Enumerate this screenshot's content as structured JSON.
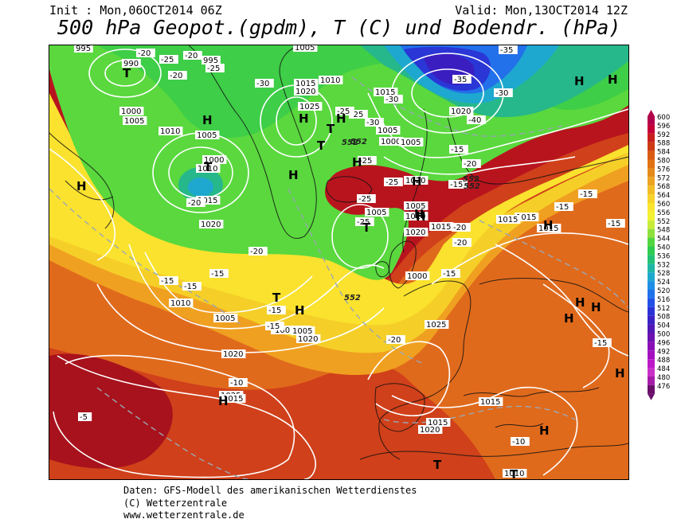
{
  "header": {
    "init": "Init : Mon,06OCT2014 06Z",
    "valid": "Valid: Mon,13OCT2014 12Z",
    "title": "500 hPa Geopot.(gpdm), T (C) und Bodendr. (hPa)"
  },
  "credits": {
    "line1": "Daten: GFS-Modell des amerikanischen Wetterdienstes",
    "line2": "(C) Wetterzentrale",
    "line3": "www.wetterzentrale.de"
  },
  "legend": {
    "values": [
      "600",
      "596",
      "592",
      "588",
      "584",
      "580",
      "576",
      "572",
      "568",
      "564",
      "560",
      "556",
      "552",
      "548",
      "544",
      "540",
      "536",
      "532",
      "528",
      "524",
      "520",
      "516",
      "512",
      "508",
      "504",
      "500",
      "496",
      "492",
      "488",
      "484",
      "480",
      "476"
    ],
    "colors": [
      "#b3004a",
      "#c40037",
      "#c81e1e",
      "#cd3a14",
      "#d95a12",
      "#e07214",
      "#e58a1a",
      "#eca321",
      "#f2bc25",
      "#f6d22a",
      "#fae52e",
      "#f2f232",
      "#c8ec3a",
      "#8ee03c",
      "#52d640",
      "#2ecb50",
      "#22c276",
      "#1fb6a4",
      "#1ea8cf",
      "#1e8ee6",
      "#1f72ea",
      "#2250e6",
      "#2a32d6",
      "#3a22c4",
      "#5018b4",
      "#6c12b0",
      "#8a10b6",
      "#a412c0",
      "#bc1ac8",
      "#c830c8",
      "#a41ca8",
      "#6a0e6a"
    ]
  },
  "map": {
    "pressure_labels": [
      "995",
      "990",
      "995",
      "1005",
      "1015",
      "1010",
      "1020",
      "1025",
      "1000",
      "1005",
      "1010",
      "1005",
      "1000",
      "1010",
      "1015",
      "1020",
      "1010",
      "1005",
      "1020",
      "1025",
      "1015",
      "1010",
      "1015",
      "1005",
      "1020",
      "1005",
      "1000",
      "1005",
      "1010",
      "1015",
      "1020",
      "1025",
      "1015",
      "1020",
      "1015",
      "1010",
      "1015",
      "1015",
      "1005",
      "1015",
      "1000",
      "1005",
      "1020",
      "1005",
      "1020",
      "1015"
    ],
    "temp_labels": [
      "-20",
      "-25",
      "-20",
      "-25",
      "-20",
      "-30",
      "-35",
      "-30",
      "-35",
      "-40",
      "-30",
      "-25",
      "-30",
      "-25",
      "-25",
      "-20",
      "-25",
      "-25",
      "-20",
      "-15",
      "-15",
      "-20",
      "-15",
      "-20",
      "-15",
      "-10",
      "-15",
      "-15",
      "-15",
      "-20",
      "-15",
      "-15",
      "-10",
      "-5",
      "-15",
      "-15",
      "-20",
      "-25",
      "-15"
    ],
    "height_labels": [
      "552",
      "552",
      "552",
      "552",
      "552"
    ],
    "centers": [
      "T",
      "T",
      "T",
      "T",
      "T",
      "T",
      "T",
      "T",
      "H",
      "H",
      "H",
      "H",
      "H",
      "H",
      "H",
      "H",
      "H",
      "H",
      "H",
      "H",
      "H",
      "H",
      "H",
      "H",
      "H",
      "H",
      "H"
    ]
  }
}
